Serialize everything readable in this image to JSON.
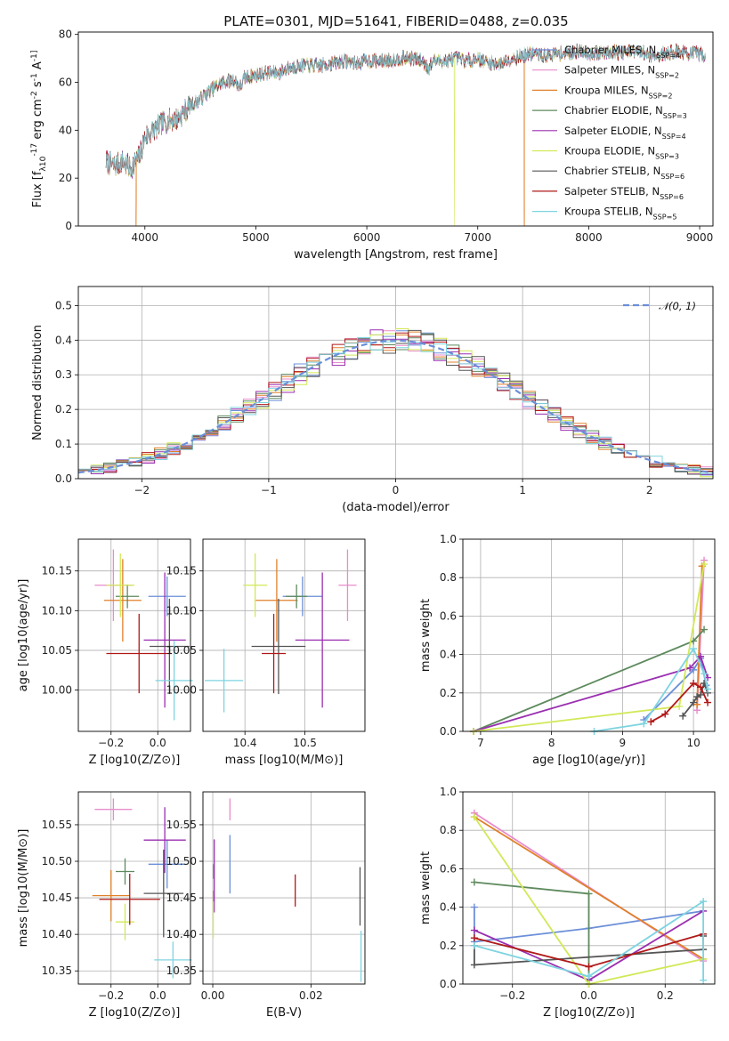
{
  "figure_title": "PLATE=0301, MJD=51641, FIBERID=0488, z=0.035",
  "chart_data": [
    {
      "id": "spectrum",
      "type": "line",
      "xlabel": "wavelength [Angstrom, rest frame]",
      "ylabel": "Flux [f_λ10^-17 erg cm^-2 s^-1 A^-1]",
      "xlim": [
        3400,
        9120
      ],
      "ylim": [
        0,
        81
      ],
      "xticks": [
        "4000",
        "5000",
        "6000",
        "7000",
        "8000",
        "9000"
      ],
      "yticks": [
        "0",
        "20",
        "40",
        "60",
        "80"
      ],
      "grid": false,
      "legend": "top-right",
      "series": [
        {
          "name": "Chabrier MILES, N_SSP=4",
          "color": "#6b8fd8"
        },
        {
          "name": "Salpeter MILES, N_SSP=2",
          "color": "#e88ccc"
        },
        {
          "name": "Kroupa MILES, N_SSP=2",
          "color": "#e0802a"
        },
        {
          "name": "Chabrier ELODIE, N_SSP=3",
          "color": "#5e8a5e"
        },
        {
          "name": "Salpeter ELODIE, N_SSP=4",
          "color": "#9a2fb0"
        },
        {
          "name": "Kroupa ELODIE, N_SSP=3",
          "color": "#d2e858"
        },
        {
          "name": "Chabrier STELIB, N_SSP=6",
          "color": "#555555"
        },
        {
          "name": "Salpeter STELIB, N_SSP=6",
          "color": "#b01818"
        },
        {
          "name": "Kroupa STELIB, N_SSP=5",
          "color": "#7ed4e0"
        }
      ],
      "continuum": {
        "x": [
          3650,
          3720,
          3800,
          3870,
          3950,
          4000,
          4100,
          4200,
          4300,
          4400,
          4500,
          4600,
          4700,
          4800,
          4860,
          4900,
          5000,
          5100,
          5200,
          5300,
          5400,
          5500,
          5600,
          5700,
          5800,
          5900,
          6000,
          6100,
          6200,
          6300,
          6400,
          6500,
          6560,
          6600,
          6700,
          6800,
          6900,
          7000,
          7100,
          7200,
          7300,
          7400,
          7500,
          7600,
          7700,
          7800,
          7900,
          8000,
          8100,
          8200,
          8300,
          8400,
          8500,
          8600,
          8700,
          8800,
          8900,
          9000,
          9050
        ],
        "y": [
          27,
          25,
          27,
          24,
          29,
          37,
          41,
          44,
          45,
          50,
          53,
          57,
          60,
          61,
          58,
          62,
          63,
          64,
          64,
          66,
          67,
          67,
          67,
          68,
          69,
          68,
          69,
          69,
          69,
          70,
          70,
          69,
          66,
          69,
          69,
          70,
          69,
          70,
          68,
          68,
          70,
          71,
          72,
          71,
          72,
          72,
          73,
          72,
          72,
          73,
          72,
          73,
          72,
          71,
          72,
          73,
          72,
          72,
          71
        ]
      },
      "dropouts": [
        {
          "x": 3920,
          "series": "Kroupa MILES, N_SSP=2"
        },
        {
          "x": 6790,
          "series": "Kroupa ELODIE, N_SSP=3"
        },
        {
          "x": 7420,
          "series": "Kroupa MILES, N_SSP=2"
        }
      ]
    },
    {
      "id": "residuals",
      "type": "histogram",
      "xlabel": "(data-model)/error",
      "ylabel": "Normed distribution",
      "xlim": [
        -2.5,
        2.5
      ],
      "ylim": [
        0,
        0.555
      ],
      "xticks": [
        "−2",
        "−1",
        "0",
        "1",
        "2"
      ],
      "yticks": [
        "0.0",
        "0.1",
        "0.2",
        "0.3",
        "0.4",
        "0.5"
      ],
      "grid": true,
      "legend": "top-right",
      "reference": {
        "name": "𝒩(0, 1)",
        "color": "#6b8fd8"
      }
    },
    {
      "id": "age-vs-Z",
      "type": "scatter",
      "xlabel": "Z [log10(Z/Z⊙)]",
      "ylabel": "age [log10(age/yr)]",
      "xlim": [
        -0.34,
        0.14
      ],
      "ylim": [
        9.948,
        10.19
      ],
      "xticks": [
        "−0.2",
        "0.0"
      ],
      "yticks": [
        "10.00",
        "10.05",
        "10.10",
        "10.15"
      ],
      "grid": true,
      "points": [
        {
          "x": 0.04,
          "y": 10.118,
          "xerr": 0.08,
          "yerr": 0.025,
          "color": "#6b8fd8"
        },
        {
          "x": -0.19,
          "y": 10.132,
          "xerr": 0.08,
          "yerr": 0.045,
          "color": "#e88ccc"
        },
        {
          "x": -0.15,
          "y": 10.113,
          "xerr": 0.08,
          "yerr": 0.052,
          "color": "#e0802a"
        },
        {
          "x": -0.13,
          "y": 10.118,
          "xerr": 0.05,
          "yerr": 0.015,
          "color": "#5e8a5e"
        },
        {
          "x": 0.03,
          "y": 10.063,
          "xerr": 0.09,
          "yerr": 0.085,
          "color": "#9a2fb0"
        },
        {
          "x": -0.16,
          "y": 10.132,
          "xerr": 0.06,
          "yerr": 0.04,
          "color": "#d2e858"
        },
        {
          "x": 0.05,
          "y": 10.055,
          "xerr": 0.085,
          "yerr": 0.06,
          "color": "#555555"
        },
        {
          "x": -0.08,
          "y": 10.046,
          "xerr": 0.14,
          "yerr": 0.05,
          "color": "#b01818"
        },
        {
          "x": 0.07,
          "y": 10.012,
          "xerr": 0.08,
          "yerr": 0.05,
          "color": "#7ed4e0"
        }
      ]
    },
    {
      "id": "age-vs-mass",
      "type": "scatter",
      "xlabel": "mass [log10(M/M⊙)]",
      "ylabel": "",
      "xlim": [
        10.33,
        10.6
      ],
      "ylim": [
        9.948,
        10.19
      ],
      "xticks": [
        "10.4",
        "10.5"
      ],
      "yticks": [
        "10.00",
        "10.05",
        "10.10",
        "10.15"
      ],
      "grid": true,
      "points": [
        {
          "x": 10.496,
          "y": 10.118,
          "xerr": 0.033,
          "yerr": 0.025,
          "color": "#6b8fd8"
        },
        {
          "x": 10.571,
          "y": 10.132,
          "xerr": 0.015,
          "yerr": 0.045,
          "color": "#e88ccc"
        },
        {
          "x": 10.453,
          "y": 10.113,
          "xerr": 0.035,
          "yerr": 0.052,
          "color": "#e0802a"
        },
        {
          "x": 10.486,
          "y": 10.118,
          "xerr": 0.018,
          "yerr": 0.015,
          "color": "#5e8a5e"
        },
        {
          "x": 10.529,
          "y": 10.063,
          "xerr": 0.045,
          "yerr": 0.085,
          "color": "#9a2fb0"
        },
        {
          "x": 10.417,
          "y": 10.132,
          "xerr": 0.02,
          "yerr": 0.04,
          "color": "#d2e858"
        },
        {
          "x": 10.456,
          "y": 10.055,
          "xerr": 0.045,
          "yerr": 0.06,
          "color": "#555555"
        },
        {
          "x": 10.448,
          "y": 10.046,
          "xerr": 0.02,
          "yerr": 0.05,
          "color": "#b01818"
        },
        {
          "x": 10.365,
          "y": 10.012,
          "xerr": 0.032,
          "yerr": 0.04,
          "color": "#7ed4e0"
        }
      ]
    },
    {
      "id": "mass-weight-vs-age",
      "type": "line",
      "xlabel": "age [log10(age/yr)]",
      "ylabel": "mass weight",
      "xlim": [
        6.75,
        10.3
      ],
      "ylim": [
        0,
        1
      ],
      "xticks": [
        "7",
        "8",
        "9",
        "10"
      ],
      "yticks": [
        "0.0",
        "0.2",
        "0.4",
        "0.6",
        "0.8",
        "1.0"
      ],
      "grid": true,
      "series": [
        {
          "color": "#6b8fd8",
          "x": [
            9.3,
            10.0,
            10.1,
            10.18
          ],
          "y": [
            0.06,
            0.32,
            0.38,
            0.24
          ]
        },
        {
          "color": "#e88ccc",
          "x": [
            10.05,
            10.15
          ],
          "y": [
            0.11,
            0.89
          ]
        },
        {
          "color": "#e0802a",
          "x": [
            10.05,
            10.12
          ],
          "y": [
            0.14,
            0.86
          ]
        },
        {
          "color": "#5e8a5e",
          "x": [
            6.9,
            10.0,
            10.15
          ],
          "y": [
            0.0,
            0.47,
            0.53
          ]
        },
        {
          "color": "#9a2fb0",
          "x": [
            6.9,
            9.95,
            10.1,
            10.2
          ],
          "y": [
            0.0,
            0.33,
            0.39,
            0.28
          ]
        },
        {
          "color": "#d2e858",
          "x": [
            6.9,
            9.8,
            10.15
          ],
          "y": [
            0.0,
            0.13,
            0.87
          ]
        },
        {
          "color": "#555555",
          "x": [
            9.85,
            10.0,
            10.05,
            10.1,
            10.15,
            10.2
          ],
          "y": [
            0.08,
            0.15,
            0.18,
            0.19,
            0.25,
            0.2
          ]
        },
        {
          "color": "#b01818",
          "x": [
            9.4,
            9.6,
            10.0,
            10.1,
            10.2
          ],
          "y": [
            0.05,
            0.09,
            0.25,
            0.23,
            0.15
          ]
        },
        {
          "color": "#7ed4e0",
          "x": [
            8.6,
            9.3,
            10.0,
            10.15,
            10.2
          ],
          "y": [
            0.0,
            0.04,
            0.43,
            0.3,
            0.22
          ]
        }
      ]
    },
    {
      "id": "mass-vs-Z",
      "type": "scatter",
      "xlabel": "Z [log10(Z/Z⊙)]",
      "ylabel": "mass [log10(M/M⊙)]",
      "xlim": [
        -0.34,
        0.14
      ],
      "ylim": [
        10.332,
        10.595
      ],
      "xticks": [
        "−0.2",
        "0.0"
      ],
      "yticks": [
        "10.35",
        "10.40",
        "10.45",
        "10.50",
        "10.55"
      ],
      "grid": true,
      "points": [
        {
          "x": 0.04,
          "y": 10.496,
          "xerr": 0.08,
          "yerr": 0.033,
          "color": "#6b8fd8"
        },
        {
          "x": -0.19,
          "y": 10.571,
          "xerr": 0.08,
          "yerr": 0.015,
          "color": "#e88ccc"
        },
        {
          "x": -0.2,
          "y": 10.453,
          "xerr": 0.08,
          "yerr": 0.035,
          "color": "#e0802a"
        },
        {
          "x": -0.14,
          "y": 10.486,
          "xerr": 0.04,
          "yerr": 0.018,
          "color": "#5e8a5e"
        },
        {
          "x": 0.03,
          "y": 10.529,
          "xerr": 0.09,
          "yerr": 0.045,
          "color": "#9a2fb0"
        },
        {
          "x": -0.14,
          "y": 10.417,
          "xerr": 0.04,
          "yerr": 0.025,
          "color": "#d2e858"
        },
        {
          "x": 0.025,
          "y": 10.456,
          "xerr": 0.085,
          "yerr": 0.06,
          "color": "#555555"
        },
        {
          "x": -0.12,
          "y": 10.448,
          "xerr": 0.13,
          "yerr": 0.035,
          "color": "#b01818"
        },
        {
          "x": 0.065,
          "y": 10.365,
          "xerr": 0.08,
          "yerr": 0.025,
          "color": "#7ed4e0"
        }
      ]
    },
    {
      "id": "mass-vs-EBV",
      "type": "scatter",
      "xlabel": "E(B-V)",
      "ylabel": "",
      "xlim": [
        -0.002,
        0.031
      ],
      "ylim": [
        10.332,
        10.595
      ],
      "xticks": [
        "0.00",
        "0.02"
      ],
      "yticks": [
        "10.35",
        "10.40",
        "10.45",
        "10.50",
        "10.55"
      ],
      "grid": true,
      "points": [
        {
          "x": 0.0035,
          "y": 10.496,
          "xerr": 0.0,
          "yerr": 0.04,
          "color": "#6b8fd8"
        },
        {
          "x": 0.0035,
          "y": 10.571,
          "xerr": 0.0,
          "yerr": 0.015,
          "color": "#e88ccc"
        },
        {
          "x": 0.0002,
          "y": 10.45,
          "xerr": 0.0,
          "yerr": 0.01,
          "color": "#e0802a"
        },
        {
          "x": 0.0002,
          "y": 10.486,
          "xerr": 0.0,
          "yerr": 0.01,
          "color": "#5e8a5e"
        },
        {
          "x": 0.0003,
          "y": 10.48,
          "xerr": 0.0,
          "yerr": 0.05,
          "color": "#9a2fb0"
        },
        {
          "x": 0.0001,
          "y": 10.42,
          "xerr": 0.0,
          "yerr": 0.025,
          "color": "#d2e858"
        },
        {
          "x": 0.03,
          "y": 10.452,
          "xerr": 0.0,
          "yerr": 0.04,
          "color": "#555555"
        },
        {
          "x": 0.0168,
          "y": 10.46,
          "xerr": 0.0,
          "yerr": 0.022,
          "color": "#b01818"
        },
        {
          "x": 0.0302,
          "y": 10.37,
          "xerr": 0.0,
          "yerr": 0.035,
          "color": "#7ed4e0"
        }
      ]
    },
    {
      "id": "mass-weight-vs-Z",
      "type": "line",
      "xlabel": "Z [log10(Z/Z⊙)]",
      "ylabel": "mass weight",
      "xlim": [
        -0.33,
        0.33
      ],
      "ylim": [
        0,
        1
      ],
      "xticks": [
        "−0.2",
        "0.0",
        "0.2"
      ],
      "yticks": [
        "0.0",
        "0.2",
        "0.4",
        "0.6",
        "0.8",
        "1.0"
      ],
      "grid": true,
      "series": [
        {
          "color": "#6b8fd8",
          "x": [
            -0.3,
            -0.3,
            0.0,
            0.3
          ],
          "y": [
            0.4,
            0.22,
            0.29,
            0.38
          ]
        },
        {
          "color": "#e88ccc",
          "x": [
            -0.3,
            0.3
          ],
          "y": [
            0.89,
            0.12
          ]
        },
        {
          "color": "#e0802a",
          "x": [
            -0.3,
            0.3
          ],
          "y": [
            0.87,
            0.13
          ]
        },
        {
          "color": "#5e8a5e",
          "x": [
            -0.3,
            0.0,
            0.0
          ],
          "y": [
            0.53,
            0.47,
            0.0
          ]
        },
        {
          "color": "#9a2fb0",
          "x": [
            -0.3,
            0.0,
            0.3
          ],
          "y": [
            0.28,
            0.02,
            0.38
          ]
        },
        {
          "color": "#d2e858",
          "x": [
            -0.3,
            0.0,
            0.3
          ],
          "y": [
            0.87,
            0.0,
            0.13
          ]
        },
        {
          "color": "#555555",
          "x": [
            -0.3,
            -0.3,
            0.3,
            0.3
          ],
          "y": [
            0.2,
            0.1,
            0.18,
            0.25
          ]
        },
        {
          "color": "#b01818",
          "x": [
            -0.3,
            0.0,
            0.3
          ],
          "y": [
            0.24,
            0.09,
            0.26
          ]
        },
        {
          "color": "#7ed4e0",
          "x": [
            -0.3,
            0.0,
            0.3,
            0.3
          ],
          "y": [
            0.2,
            0.04,
            0.43,
            0.02
          ]
        }
      ]
    }
  ]
}
